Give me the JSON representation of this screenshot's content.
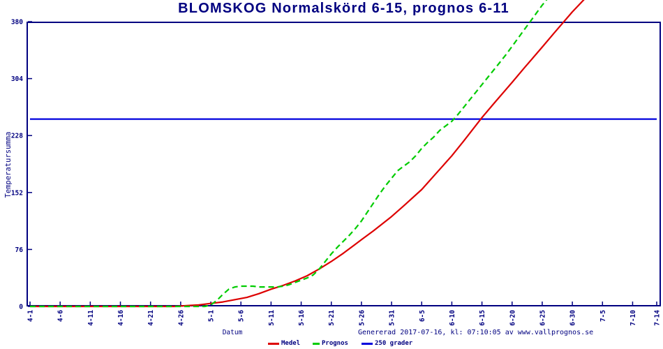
{
  "page": {
    "title": "BLOMSKOG Normalskörd 6-15, prognos 6-11"
  },
  "footer": {
    "generated_text": "Genererad 2017-07-16, kl: 07:10:05 av www.vallprognos.se"
  },
  "colors": {
    "background": "#ffffff",
    "axis": "#000080",
    "title_text": "#000080",
    "tick_text": "#000080",
    "medel": "#dd0000",
    "prognos": "#00cc00",
    "line250": "#0000dd"
  },
  "chart_data": {
    "type": "line",
    "title": "BLOMSKOG Normalskörd 6-15, prognos 6-11",
    "xlabel": "Datum",
    "ylabel": "Temperatursumma",
    "x_tick_labels": [
      "4-1",
      "4-6",
      "4-11",
      "4-16",
      "4-21",
      "4-26",
      "5-1",
      "5-6",
      "5-11",
      "5-16",
      "5-21",
      "5-26",
      "5-31",
      "6-5",
      "6-10",
      "6-15",
      "6-20",
      "6-25",
      "6-30",
      "7-5",
      "7-10",
      "7-14"
    ],
    "x_tick_days": [
      0,
      5,
      10,
      15,
      20,
      25,
      30,
      35,
      40,
      45,
      50,
      55,
      60,
      65,
      70,
      75,
      80,
      85,
      90,
      95,
      100,
      104
    ],
    "x_days_range": [
      0,
      104
    ],
    "y_ticks": [
      0,
      76,
      152,
      228,
      304,
      380
    ],
    "ylim": [
      0,
      380
    ],
    "grid": false,
    "legend_position": "bottom",
    "series": [
      {
        "name": "Medel",
        "color": "#dd0000",
        "style": "solid",
        "points": [
          [
            0,
            0
          ],
          [
            5,
            0
          ],
          [
            10,
            0
          ],
          [
            15,
            0
          ],
          [
            20,
            0
          ],
          [
            22,
            0
          ],
          [
            24,
            0
          ],
          [
            26,
            1
          ],
          [
            28,
            2
          ],
          [
            30,
            4
          ],
          [
            32,
            6
          ],
          [
            34,
            9
          ],
          [
            36,
            12
          ],
          [
            38,
            17
          ],
          [
            40,
            23
          ],
          [
            42,
            28
          ],
          [
            44,
            34
          ],
          [
            46,
            41
          ],
          [
            48,
            50
          ],
          [
            50,
            60
          ],
          [
            52,
            71
          ],
          [
            54,
            83
          ],
          [
            55,
            89
          ],
          [
            57,
            101
          ],
          [
            60,
            120
          ],
          [
            62,
            134
          ],
          [
            65,
            156
          ],
          [
            67,
            174
          ],
          [
            70,
            201
          ],
          [
            72,
            221
          ],
          [
            75,
            252
          ],
          [
            77,
            271
          ],
          [
            80,
            299
          ],
          [
            82,
            318
          ],
          [
            85,
            346
          ],
          [
            87,
            365
          ],
          [
            90,
            393
          ],
          [
            92,
            410
          ]
        ]
      },
      {
        "name": "Prognos",
        "color": "#00cc00",
        "style": "dashed",
        "points": [
          [
            0,
            0
          ],
          [
            5,
            0
          ],
          [
            10,
            0
          ],
          [
            15,
            0
          ],
          [
            20,
            0
          ],
          [
            25,
            0
          ],
          [
            28,
            0
          ],
          [
            29,
            0
          ],
          [
            30,
            2
          ],
          [
            31,
            8
          ],
          [
            32,
            16
          ],
          [
            33,
            23
          ],
          [
            34,
            26
          ],
          [
            35,
            27
          ],
          [
            36,
            27
          ],
          [
            37,
            27
          ],
          [
            38,
            26
          ],
          [
            39,
            26
          ],
          [
            40,
            26
          ],
          [
            41,
            26
          ],
          [
            42,
            27
          ],
          [
            43,
            29
          ],
          [
            44,
            32
          ],
          [
            45,
            35
          ],
          [
            46,
            38
          ],
          [
            47,
            42
          ],
          [
            48,
            50
          ],
          [
            49,
            60
          ],
          [
            50,
            70
          ],
          [
            51,
            79
          ],
          [
            52,
            87
          ],
          [
            53,
            95
          ],
          [
            54,
            104
          ],
          [
            55,
            114
          ],
          [
            56,
            126
          ],
          [
            57,
            138
          ],
          [
            58,
            150
          ],
          [
            59,
            161
          ],
          [
            60,
            171
          ],
          [
            61,
            181
          ],
          [
            62,
            187
          ],
          [
            63,
            193
          ],
          [
            64,
            201
          ],
          [
            65,
            211
          ],
          [
            66,
            219
          ],
          [
            67,
            226
          ],
          [
            68,
            235
          ],
          [
            69,
            241
          ],
          [
            70,
            247
          ],
          [
            71,
            256
          ],
          [
            72,
            266
          ],
          [
            73,
            276
          ],
          [
            74,
            286
          ],
          [
            75,
            296
          ],
          [
            76,
            306
          ],
          [
            77,
            316
          ],
          [
            78,
            326
          ],
          [
            79,
            336
          ],
          [
            80,
            347
          ],
          [
            81,
            358
          ],
          [
            82,
            369
          ],
          [
            83,
            380
          ],
          [
            84,
            391
          ],
          [
            85,
            402
          ],
          [
            86,
            412
          ]
        ]
      },
      {
        "name": "250 grader",
        "color": "#0000dd",
        "style": "solid",
        "points": [
          [
            0,
            250
          ],
          [
            104,
            250
          ]
        ]
      }
    ]
  }
}
